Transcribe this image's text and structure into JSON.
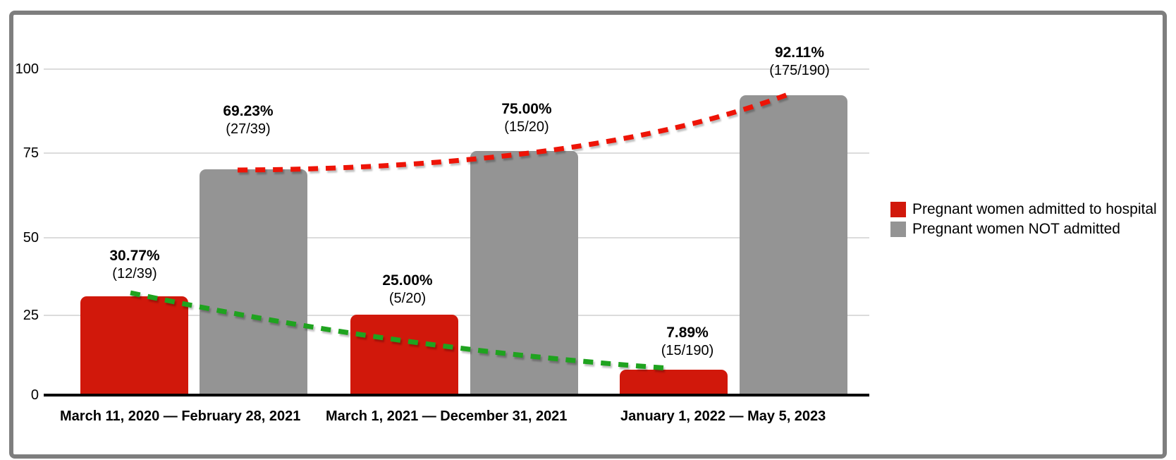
{
  "chart_data": {
    "type": "bar",
    "title": "",
    "xlabel": "",
    "ylabel": "",
    "ylim": [
      0,
      100
    ],
    "grid": true,
    "legend_position": "right",
    "yticks": [
      "0",
      "25",
      "50",
      "75",
      "100"
    ],
    "ytick_values": [
      0,
      25,
      50,
      75,
      100
    ],
    "categories": [
      "March 11, 2020 — February 28, 2021",
      "March 1, 2021 — December 31, 2021",
      "January 1, 2022 — May 5, 2023"
    ],
    "series": [
      {
        "name": "Pregnant women admitted to hospital",
        "color": "#d1180b",
        "values": [
          30.77,
          25.0,
          7.89
        ],
        "value_labels": [
          "30.77%",
          "25.00%",
          "7.89%"
        ],
        "fraction_labels": [
          "(12/39)",
          "(5/20)",
          "(15/190)"
        ],
        "trendline": {
          "color": "#1fa31f",
          "direction": "decreasing",
          "style": "dashed"
        }
      },
      {
        "name": "Pregnant women NOT admitted",
        "color": "#949494",
        "values": [
          69.23,
          75.0,
          92.11
        ],
        "value_labels": [
          "69.23%",
          "75.00%",
          "92.11%"
        ],
        "fraction_labels": [
          "(27/39)",
          "(15/20)",
          "(175/190)"
        ],
        "trendline": {
          "color": "#ee1407",
          "direction": "increasing",
          "style": "dashed"
        }
      }
    ]
  },
  "colors": {
    "frame_border": "#7e7e7e",
    "gridline": "#dcdcdc",
    "axis_line": "#000000",
    "bar_admitted": "#d1180b",
    "bar_not_admitted": "#949494",
    "trend_admitted": "#1fa31f",
    "trend_not_admitted": "#ee1407"
  }
}
